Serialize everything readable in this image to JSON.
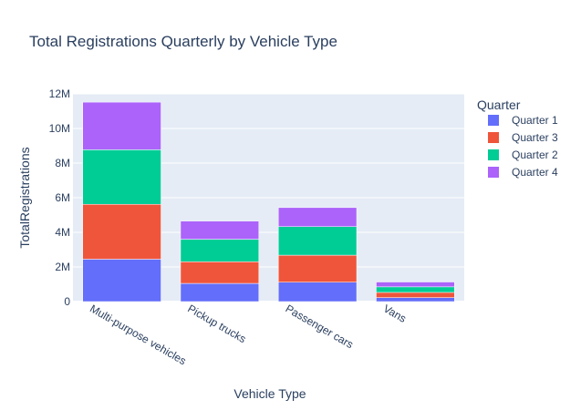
{
  "chart_data": {
    "type": "bar",
    "barmode": "stack",
    "title": "Total Registrations Quarterly by Vehicle Type",
    "xlabel": "Vehicle Type",
    "ylabel": "TotalRegistrations",
    "categories": [
      "Multi-purpose vehicles",
      "Pickup trucks",
      "Passenger cars",
      "Vans"
    ],
    "ylim": [
      0,
      12000000
    ],
    "yticks": [
      {
        "value": 0,
        "label": "0"
      },
      {
        "value": 2000000,
        "label": "2M"
      },
      {
        "value": 4000000,
        "label": "4M"
      },
      {
        "value": 6000000,
        "label": "6M"
      },
      {
        "value": 8000000,
        "label": "8M"
      },
      {
        "value": 10000000,
        "label": "10M"
      },
      {
        "value": 12000000,
        "label": "12M"
      }
    ],
    "legend_title": "Quarter",
    "legend_position": "top-right",
    "grid": true,
    "plot_bg": "#e5ecf6",
    "series": [
      {
        "name": "Quarter 1",
        "color": "#636efa",
        "values": [
          2450000,
          1050000,
          1120000,
          230000
        ]
      },
      {
        "name": "Quarter 3",
        "color": "#ef553b",
        "values": [
          3170000,
          1250000,
          1560000,
          300000
        ]
      },
      {
        "name": "Quarter 2",
        "color": "#00cc96",
        "values": [
          3150000,
          1300000,
          1650000,
          320000
        ]
      },
      {
        "name": "Quarter 4",
        "color": "#ab63fa",
        "values": [
          2750000,
          1050000,
          1100000,
          280000
        ]
      }
    ]
  }
}
